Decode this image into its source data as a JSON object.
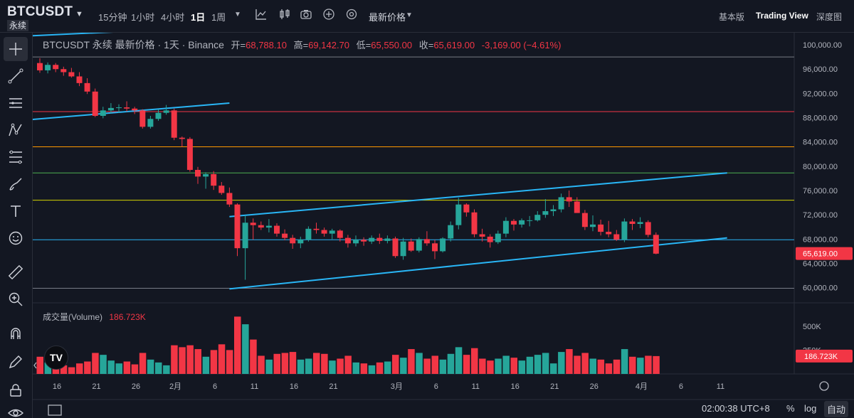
{
  "header": {
    "symbol": "BTCUSDT",
    "contract_type": "永续",
    "timeframes": [
      "15分钟",
      "1小时",
      "4小时",
      "1日",
      "1周"
    ],
    "active_timeframe": "1日",
    "price_type": "最新价格",
    "views": [
      "基本版",
      "Trading View",
      "深度图"
    ],
    "active_view": "Trading View"
  },
  "left_toolbar": {
    "tools": [
      "crosshair-icon",
      "trend-line-icon",
      "horizontal-lines-icon",
      "pattern-icon",
      "fib-icon",
      "brush-icon",
      "text-icon",
      "emoji-icon",
      "ruler-icon",
      "zoom-in-icon",
      "magnet-icon",
      "pencil-lock-icon",
      "lock-icon",
      "eye-icon"
    ]
  },
  "legend": {
    "symbol_line": "BTCUSDT 永续 最新价格 · 1天 · Binance",
    "open_label": "开=",
    "open": "68,788.10",
    "high_label": "高=",
    "high": "69,142.70",
    "low_label": "低=",
    "low": "65,550.00",
    "close_label": "收=",
    "close": "65,619.00",
    "change": "-3,169.00 (−4.61%)"
  },
  "volume_legend": {
    "label": "成交量(Volume)",
    "value": "186.723K"
  },
  "logo_text": "TV",
  "bottom": {
    "time": "02:00:38 UTC+8",
    "percent_label": "%",
    "log_label": "log",
    "auto_label": "自动"
  },
  "colors": {
    "up": "#26a69a",
    "down": "#f23645",
    "channel": "#29b6f6",
    "background": "#131722"
  },
  "chart_data": {
    "type": "candlestick",
    "price_axis_ticks": [
      "100,000.00",
      "96,000.00",
      "92,000.00",
      "88,000.00",
      "84,000.00",
      "80,000.00",
      "76,000.00",
      "72,000.00",
      "68,000.00",
      "64,000.00",
      "60,000.00"
    ],
    "price_axis_values": [
      100000,
      96000,
      92000,
      88000,
      84000,
      80000,
      76000,
      72000,
      68000,
      64000,
      60000
    ],
    "current_price_label": "65,619.00",
    "current_price": 65619,
    "volume_axis_ticks": [
      "500K",
      "250K"
    ],
    "volume_axis_values": [
      500000,
      250000
    ],
    "current_volume_label": "186.723K",
    "current_volume": 186723,
    "time_axis_ticks": [
      "16",
      "21",
      "26",
      "2月",
      "6",
      "11",
      "16",
      "21",
      "3月",
      "6",
      "11",
      "16",
      "21",
      "26",
      "4月",
      "6",
      "11"
    ],
    "time_axis_index": [
      0,
      5,
      10,
      15,
      20,
      25,
      30,
      35,
      43,
      48,
      53,
      58,
      63,
      68,
      74,
      79,
      84
    ],
    "horizontal_levels": [
      {
        "price": 98000,
        "color": "#787b86"
      },
      {
        "price": 89000,
        "color": "#f23645"
      },
      {
        "price": 83200,
        "color": "#ff9800"
      },
      {
        "price": 78900,
        "color": "#4caf50"
      },
      {
        "price": 74400,
        "color": "#d4d400"
      },
      {
        "price": 67900,
        "color": "#29b6f6"
      },
      {
        "price": 59900,
        "color": "#787b86"
      }
    ],
    "trend_lines": [
      {
        "from": [
          -1,
          101500
        ],
        "to": [
          24,
          103000
        ]
      },
      {
        "from": [
          -1,
          87700
        ],
        "to": [
          24,
          90400
        ]
      },
      {
        "from": [
          24,
          71700
        ],
        "to": [
          87,
          78900
        ]
      },
      {
        "from": [
          24,
          59800
        ],
        "to": [
          87,
          68200
        ]
      }
    ],
    "candles": [
      [
        97000,
        97800,
        95400,
        95800,
        180000
      ],
      [
        95800,
        97100,
        95300,
        96700,
        120000
      ],
      [
        96700,
        97000,
        95500,
        96000,
        160000
      ],
      [
        96000,
        96400,
        94900,
        95500,
        90000
      ],
      [
        95500,
        96200,
        94600,
        94800,
        70000
      ],
      [
        94800,
        95500,
        93200,
        93700,
        110000
      ],
      [
        93700,
        94500,
        91900,
        92300,
        130000
      ],
      [
        92300,
        92800,
        88100,
        88300,
        220000
      ],
      [
        88300,
        89800,
        87900,
        89200,
        200000
      ],
      [
        89200,
        90400,
        88700,
        89600,
        140000
      ],
      [
        89600,
        90200,
        88800,
        89700,
        110000
      ],
      [
        89700,
        90700,
        89000,
        89500,
        130000
      ],
      [
        89500,
        89800,
        88600,
        89200,
        100000
      ],
      [
        89200,
        89400,
        86200,
        86500,
        220000
      ],
      [
        86500,
        88300,
        86200,
        87800,
        150000
      ],
      [
        87800,
        89400,
        87500,
        88800,
        120000
      ],
      [
        88800,
        90100,
        88500,
        89200,
        90000
      ],
      [
        89200,
        89500,
        84300,
        84700,
        300000
      ],
      [
        84700,
        84900,
        83200,
        84500,
        280000
      ],
      [
        84500,
        84800,
        79100,
        79400,
        300000
      ],
      [
        79400,
        79900,
        77100,
        78300,
        260000
      ],
      [
        78300,
        79000,
        76300,
        78700,
        180000
      ],
      [
        78700,
        79200,
        76100,
        76800,
        250000
      ],
      [
        76800,
        77400,
        75300,
        75600,
        310000
      ],
      [
        75600,
        76500,
        73300,
        73700,
        250000
      ],
      [
        73700,
        73900,
        65200,
        66500,
        600000
      ],
      [
        66500,
        71900,
        61300,
        70700,
        520000
      ],
      [
        70700,
        71400,
        67900,
        70300,
        360000
      ],
      [
        70300,
        70900,
        69500,
        69900,
        190000
      ],
      [
        69900,
        71300,
        69100,
        70200,
        150000
      ],
      [
        70200,
        70600,
        68400,
        68900,
        210000
      ],
      [
        68900,
        69600,
        67800,
        68200,
        220000
      ],
      [
        68200,
        68700,
        66400,
        67300,
        230000
      ],
      [
        67300,
        68400,
        66500,
        67900,
        150000
      ],
      [
        67900,
        70100,
        67600,
        69700,
        160000
      ],
      [
        69700,
        70700,
        68900,
        69500,
        220000
      ],
      [
        69500,
        69900,
        68400,
        68900,
        210000
      ],
      [
        68900,
        69700,
        68000,
        69400,
        140000
      ],
      [
        69400,
        69600,
        67600,
        68200,
        160000
      ],
      [
        68200,
        68700,
        66600,
        67300,
        190000
      ],
      [
        67300,
        68600,
        66800,
        67900,
        120000
      ],
      [
        67900,
        68300,
        66900,
        67600,
        110000
      ],
      [
        67600,
        68600,
        67200,
        68200,
        90000
      ],
      [
        68200,
        68900,
        67200,
        67700,
        120000
      ],
      [
        67700,
        68600,
        67300,
        68100,
        130000
      ],
      [
        68100,
        68400,
        64900,
        65200,
        200000
      ],
      [
        65200,
        68200,
        64600,
        67600,
        170000
      ],
      [
        67600,
        68100,
        65900,
        66100,
        260000
      ],
      [
        66100,
        68300,
        65800,
        68000,
        220000
      ],
      [
        68000,
        69300,
        66900,
        67300,
        160000
      ],
      [
        67300,
        67900,
        64700,
        66000,
        190000
      ],
      [
        66000,
        68300,
        65800,
        68100,
        150000
      ],
      [
        68100,
        70900,
        67600,
        70300,
        210000
      ],
      [
        70300,
        74800,
        69600,
        73700,
        280000
      ],
      [
        73700,
        73900,
        71700,
        72400,
        200000
      ],
      [
        72400,
        72900,
        68300,
        68800,
        270000
      ],
      [
        68800,
        69700,
        67600,
        68400,
        160000
      ],
      [
        68400,
        68800,
        66600,
        67500,
        140000
      ],
      [
        67500,
        69400,
        67200,
        68900,
        160000
      ],
      [
        68900,
        71600,
        68300,
        71000,
        190000
      ],
      [
        71000,
        71300,
        69400,
        70400,
        170000
      ],
      [
        70400,
        71400,
        69900,
        71100,
        140000
      ],
      [
        71100,
        71800,
        70100,
        71100,
        180000
      ],
      [
        71100,
        72600,
        70900,
        72000,
        200000
      ],
      [
        72000,
        74600,
        71500,
        72600,
        220000
      ],
      [
        72600,
        73600,
        71800,
        72900,
        110000
      ],
      [
        72900,
        75500,
        72400,
        74900,
        230000
      ],
      [
        74900,
        76000,
        73300,
        74200,
        260000
      ],
      [
        74200,
        74900,
        72400,
        72300,
        190000
      ],
      [
        72300,
        72800,
        69500,
        70000,
        220000
      ],
      [
        70000,
        71900,
        69300,
        70400,
        160000
      ],
      [
        70400,
        71200,
        68600,
        69200,
        150000
      ],
      [
        69200,
        71000,
        68300,
        68800,
        110000
      ],
      [
        68800,
        69500,
        67700,
        67900,
        150000
      ],
      [
        67900,
        71400,
        67500,
        70900,
        260000
      ],
      [
        70900,
        71300,
        69500,
        70500,
        180000
      ],
      [
        70500,
        71600,
        69800,
        70800,
        170000
      ],
      [
        70800,
        71100,
        68300,
        68700,
        190000
      ],
      [
        68700,
        69100,
        65500,
        65600,
        186723
      ]
    ]
  }
}
